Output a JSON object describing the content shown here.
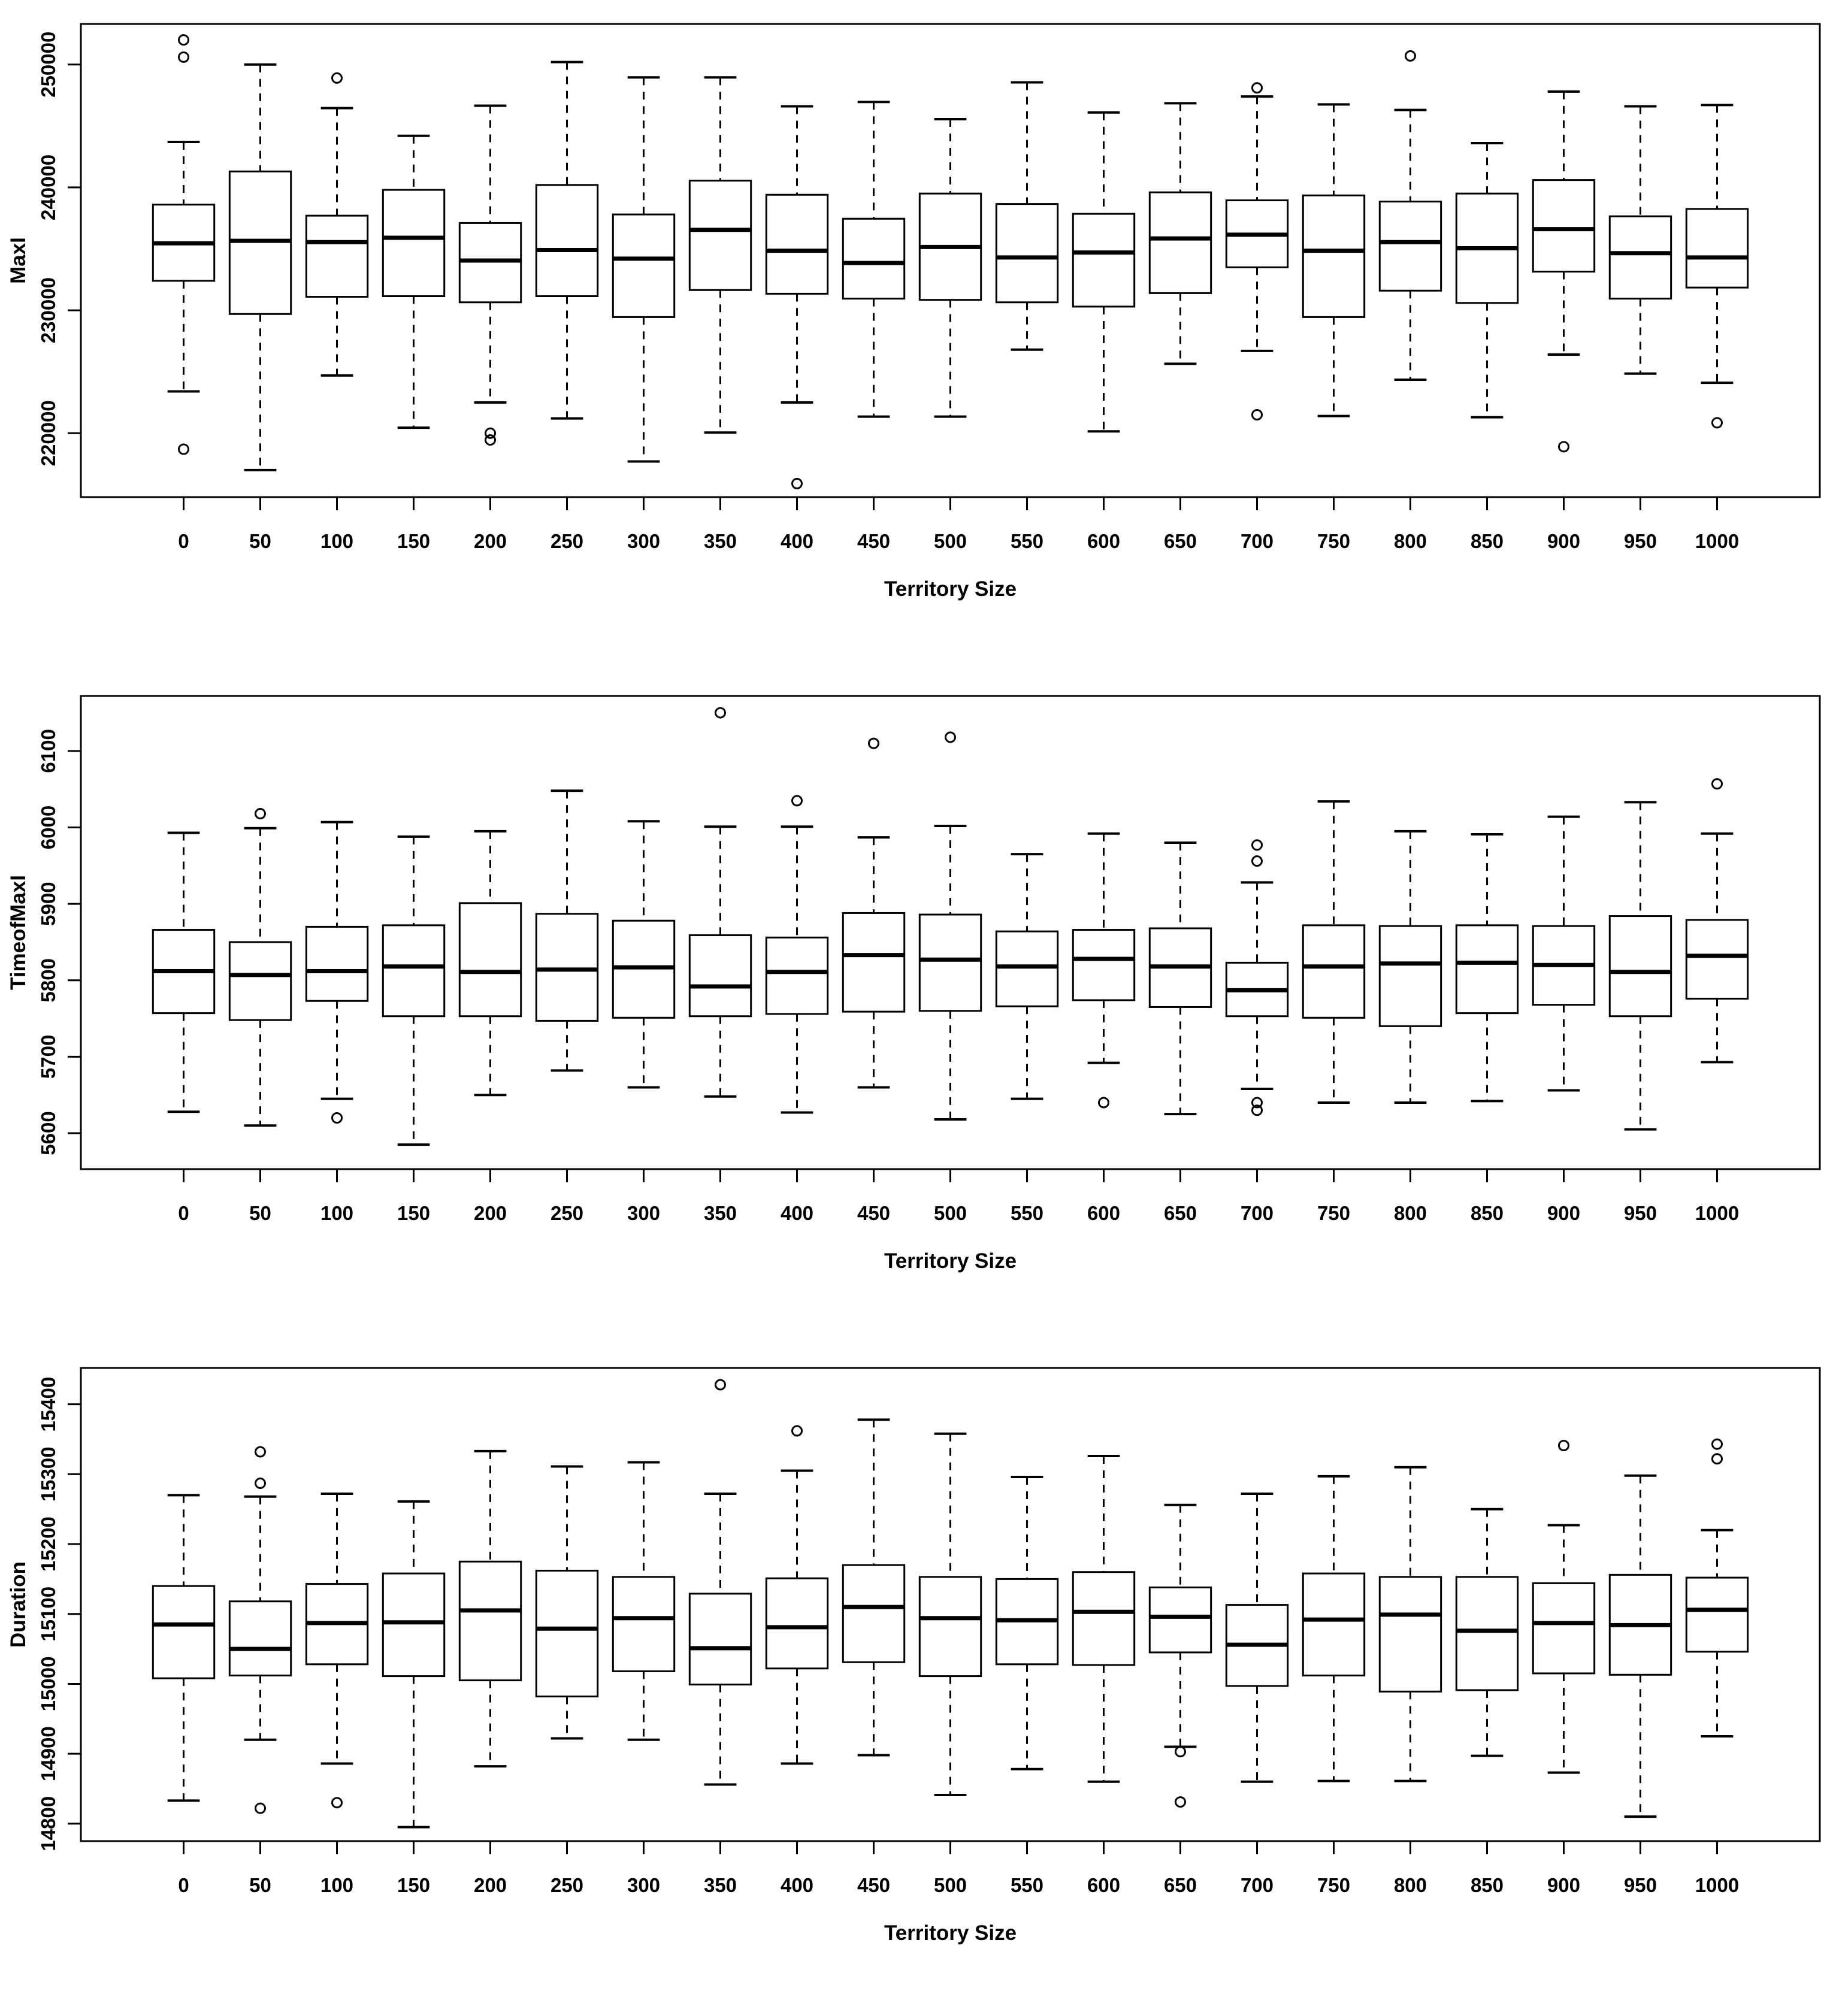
{
  "figure": {
    "background": "#ffffff",
    "stroke_color": "#000000",
    "x_axis_title": "Territory Size"
  },
  "chart_data": [
    {
      "type": "boxplot",
      "title": "",
      "xlabel": "Territory Size",
      "ylabel": "MaxI",
      "grid": false,
      "legend": null,
      "categories": [
        "0",
        "50",
        "100",
        "150",
        "200",
        "250",
        "300",
        "350",
        "400",
        "450",
        "500",
        "550",
        "600",
        "650",
        "700",
        "750",
        "800",
        "850",
        "900",
        "950",
        "1000"
      ],
      "ylim": [
        214800,
        253300
      ],
      "yticks": [
        220000,
        230000,
        240000,
        250000
      ],
      "boxes": [
        {
          "low": 223400,
          "q1": 232400,
          "med": 235450,
          "q3": 238600,
          "high": 243700,
          "outliers": [
            252000,
            250600,
            218700
          ]
        },
        {
          "low": 217000,
          "q1": 229700,
          "med": 235650,
          "q3": 241300,
          "high": 250000,
          "outliers": []
        },
        {
          "low": 224700,
          "q1": 231100,
          "med": 235550,
          "q3": 237700,
          "high": 246450,
          "outliers": [
            248900
          ]
        },
        {
          "low": 220450,
          "q1": 231150,
          "med": 235900,
          "q3": 239800,
          "high": 244200,
          "outliers": []
        },
        {
          "low": 222500,
          "q1": 230650,
          "med": 234050,
          "q3": 237100,
          "high": 246650,
          "outliers": [
            220000,
            219450
          ]
        },
        {
          "low": 221200,
          "q1": 231150,
          "med": 234900,
          "q3": 240200,
          "high": 250200,
          "outliers": []
        },
        {
          "low": 217700,
          "q1": 229450,
          "med": 234200,
          "q3": 237800,
          "high": 248950,
          "outliers": []
        },
        {
          "low": 220050,
          "q1": 231650,
          "med": 236550,
          "q3": 240550,
          "high": 248950,
          "outliers": []
        },
        {
          "low": 222500,
          "q1": 231350,
          "med": 234850,
          "q3": 239400,
          "high": 246600,
          "outliers": [
            215900
          ]
        },
        {
          "low": 221350,
          "q1": 230950,
          "med": 233850,
          "q3": 237450,
          "high": 246950,
          "outliers": []
        },
        {
          "low": 221350,
          "q1": 230850,
          "med": 235150,
          "q3": 239500,
          "high": 245550,
          "outliers": []
        },
        {
          "low": 226800,
          "q1": 230650,
          "med": 234300,
          "q3": 238650,
          "high": 248550,
          "outliers": []
        },
        {
          "low": 220150,
          "q1": 230300,
          "med": 234700,
          "q3": 237850,
          "high": 246100,
          "outliers": []
        },
        {
          "low": 225650,
          "q1": 231400,
          "med": 235850,
          "q3": 239600,
          "high": 246850,
          "outliers": []
        },
        {
          "low": 226700,
          "q1": 233500,
          "med": 236150,
          "q3": 238950,
          "high": 247400,
          "outliers": [
            248100,
            221500
          ]
        },
        {
          "low": 221400,
          "q1": 229450,
          "med": 234850,
          "q3": 239350,
          "high": 246750,
          "outliers": []
        },
        {
          "low": 224350,
          "q1": 231600,
          "med": 235550,
          "q3": 238850,
          "high": 246300,
          "outliers": [
            250700
          ]
        },
        {
          "low": 221300,
          "q1": 230600,
          "med": 235050,
          "q3": 239500,
          "high": 243600,
          "outliers": []
        },
        {
          "low": 226400,
          "q1": 233150,
          "med": 236600,
          "q3": 240600,
          "high": 247800,
          "outliers": [
            218900
          ]
        },
        {
          "low": 224850,
          "q1": 230950,
          "med": 234650,
          "q3": 237650,
          "high": 246600,
          "outliers": []
        },
        {
          "low": 224100,
          "q1": 231850,
          "med": 234300,
          "q3": 238250,
          "high": 246700,
          "outliers": [
            220850
          ]
        }
      ]
    },
    {
      "type": "boxplot",
      "title": "",
      "xlabel": "Territory Size",
      "ylabel": "TimeofMaxI",
      "grid": false,
      "legend": null,
      "categories": [
        "0",
        "50",
        "100",
        "150",
        "200",
        "250",
        "300",
        "350",
        "400",
        "450",
        "500",
        "550",
        "600",
        "650",
        "700",
        "750",
        "800",
        "850",
        "900",
        "950",
        "1000"
      ],
      "ylim": [
        5553,
        6172
      ],
      "yticks": [
        5600,
        5700,
        5800,
        5900,
        6000,
        6100
      ],
      "boxes": [
        {
          "low": 5628,
          "q1": 5757,
          "med": 5812,
          "q3": 5866,
          "high": 5993,
          "outliers": []
        },
        {
          "low": 5610,
          "q1": 5748,
          "med": 5807,
          "q3": 5850,
          "high": 5999,
          "outliers": [
            6018
          ]
        },
        {
          "low": 5645,
          "q1": 5773,
          "med": 5812,
          "q3": 5870,
          "high": 6007,
          "outliers": [
            5620
          ]
        },
        {
          "low": 5585,
          "q1": 5753,
          "med": 5818,
          "q3": 5872,
          "high": 5988,
          "outliers": []
        },
        {
          "low": 5650,
          "q1": 5753,
          "med": 5811,
          "q3": 5901,
          "high": 5995,
          "outliers": []
        },
        {
          "low": 5682,
          "q1": 5747,
          "med": 5814,
          "q3": 5887,
          "high": 6048,
          "outliers": []
        },
        {
          "low": 5660,
          "q1": 5751,
          "med": 5817,
          "q3": 5878,
          "high": 6008,
          "outliers": []
        },
        {
          "low": 5648,
          "q1": 5753,
          "med": 5792,
          "q3": 5859,
          "high": 6001,
          "outliers": [
            6150
          ]
        },
        {
          "low": 5627,
          "q1": 5756,
          "med": 5811,
          "q3": 5856,
          "high": 6001,
          "outliers": [
            6035
          ]
        },
        {
          "low": 5660,
          "q1": 5759,
          "med": 5833,
          "q3": 5888,
          "high": 5987,
          "outliers": [
            6110
          ]
        },
        {
          "low": 5618,
          "q1": 5760,
          "med": 5827,
          "q3": 5886,
          "high": 6002,
          "outliers": [
            6118
          ]
        },
        {
          "low": 5645,
          "q1": 5766,
          "med": 5818,
          "q3": 5864,
          "high": 5965,
          "outliers": []
        },
        {
          "low": 5692,
          "q1": 5774,
          "med": 5828,
          "q3": 5866,
          "high": 5992,
          "outliers": [
            5640
          ]
        },
        {
          "low": 5625,
          "q1": 5765,
          "med": 5818,
          "q3": 5868,
          "high": 5980,
          "outliers": []
        },
        {
          "low": 5658,
          "q1": 5753,
          "med": 5787,
          "q3": 5823,
          "high": 5928,
          "outliers": [
            5977,
            5956,
            5640,
            5630
          ]
        },
        {
          "low": 5640,
          "q1": 5751,
          "med": 5818,
          "q3": 5872,
          "high": 6034,
          "outliers": []
        },
        {
          "low": 5640,
          "q1": 5740,
          "med": 5822,
          "q3": 5871,
          "high": 5995,
          "outliers": []
        },
        {
          "low": 5642,
          "q1": 5757,
          "med": 5823,
          "q3": 5872,
          "high": 5991,
          "outliers": []
        },
        {
          "low": 5656,
          "q1": 5768,
          "med": 5820,
          "q3": 5871,
          "high": 6014,
          "outliers": []
        },
        {
          "low": 5605,
          "q1": 5753,
          "med": 5811,
          "q3": 5884,
          "high": 6033,
          "outliers": []
        },
        {
          "low": 5693,
          "q1": 5776,
          "med": 5832,
          "q3": 5879,
          "high": 5992,
          "outliers": [
            6057
          ]
        }
      ]
    },
    {
      "type": "boxplot",
      "title": "",
      "xlabel": "Territory Size",
      "ylabel": "Duration",
      "grid": false,
      "legend": null,
      "categories": [
        "0",
        "50",
        "100",
        "150",
        "200",
        "250",
        "300",
        "350",
        "400",
        "450",
        "500",
        "550",
        "600",
        "650",
        "700",
        "750",
        "800",
        "850",
        "900",
        "950",
        "1000"
      ],
      "ylim": [
        14775,
        15452
      ],
      "yticks": [
        14800,
        14900,
        15000,
        15100,
        15200,
        15300,
        15400
      ],
      "boxes": [
        {
          "low": 14833,
          "q1": 15008,
          "med": 15085,
          "q3": 15140,
          "high": 15270,
          "outliers": []
        },
        {
          "low": 14920,
          "q1": 15012,
          "med": 15050,
          "q3": 15118,
          "high": 15268,
          "outliers": [
            15332,
            15287,
            14822
          ]
        },
        {
          "low": 14886,
          "q1": 15028,
          "med": 15087,
          "q3": 15143,
          "high": 15272,
          "outliers": [
            14830
          ]
        },
        {
          "low": 14795,
          "q1": 15011,
          "med": 15088,
          "q3": 15158,
          "high": 15261,
          "outliers": []
        },
        {
          "low": 14882,
          "q1": 15005,
          "med": 15105,
          "q3": 15175,
          "high": 15333,
          "outliers": []
        },
        {
          "low": 14922,
          "q1": 14982,
          "med": 15079,
          "q3": 15162,
          "high": 15311,
          "outliers": []
        },
        {
          "low": 14920,
          "q1": 15018,
          "med": 15094,
          "q3": 15153,
          "high": 15317,
          "outliers": []
        },
        {
          "low": 14856,
          "q1": 14999,
          "med": 15051,
          "q3": 15129,
          "high": 15272,
          "outliers": [
            15428
          ]
        },
        {
          "low": 14886,
          "q1": 15022,
          "med": 15081,
          "q3": 15151,
          "high": 15305,
          "outliers": [
            15362
          ]
        },
        {
          "low": 14898,
          "q1": 15031,
          "med": 15110,
          "q3": 15170,
          "high": 15378,
          "outliers": []
        },
        {
          "low": 14841,
          "q1": 15011,
          "med": 15094,
          "q3": 15153,
          "high": 15358,
          "outliers": []
        },
        {
          "low": 14878,
          "q1": 15028,
          "med": 15091,
          "q3": 15150,
          "high": 15296,
          "outliers": []
        },
        {
          "low": 14860,
          "q1": 15027,
          "med": 15103,
          "q3": 15160,
          "high": 15326,
          "outliers": []
        },
        {
          "low": 14910,
          "q1": 15045,
          "med": 15096,
          "q3": 15138,
          "high": 15256,
          "outliers": [
            14903,
            14831
          ]
        },
        {
          "low": 14860,
          "q1": 14997,
          "med": 15056,
          "q3": 15113,
          "high": 15272,
          "outliers": []
        },
        {
          "low": 14861,
          "q1": 15012,
          "med": 15092,
          "q3": 15158,
          "high": 15297,
          "outliers": []
        },
        {
          "low": 14861,
          "q1": 14989,
          "med": 15099,
          "q3": 15153,
          "high": 15310,
          "outliers": []
        },
        {
          "low": 14897,
          "q1": 14991,
          "med": 15076,
          "q3": 15153,
          "high": 15250,
          "outliers": []
        },
        {
          "low": 14873,
          "q1": 15015,
          "med": 15087,
          "q3": 15144,
          "high": 15227,
          "outliers": [
            15341
          ]
        },
        {
          "low": 14810,
          "q1": 15013,
          "med": 15084,
          "q3": 15156,
          "high": 15298,
          "outliers": []
        },
        {
          "low": 14925,
          "q1": 15046,
          "med": 15106,
          "q3": 15152,
          "high": 15220,
          "outliers": [
            15343,
            15322
          ]
        }
      ]
    }
  ]
}
